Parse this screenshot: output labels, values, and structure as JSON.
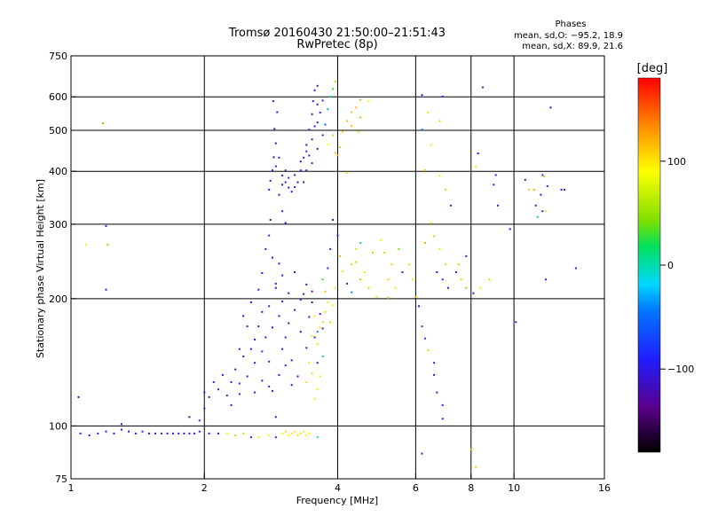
{
  "chart_data": {
    "type": "scatter",
    "title": "Tromsø 20160430 21:50:00–21:51:43",
    "subtitle": "RwPretec (8p)",
    "stats": {
      "heading": "Phases",
      "line_o": "mean, sd,O: −95.2, 18.9",
      "line_x": "mean, sd,X: 89.9, 21.6"
    },
    "xlabel": "Frequency [MHz]",
    "ylabel": "Stationary phase Virtual Height [km]",
    "x_scale": "log",
    "y_scale": "log",
    "xlim": [
      1,
      16
    ],
    "ylim": [
      75,
      750
    ],
    "x_ticks": [
      1,
      2,
      4,
      6,
      8,
      10,
      16
    ],
    "x_tick_labels": [
      "1",
      "2",
      "4",
      "6",
      "8",
      "10",
      "16"
    ],
    "y_ticks": [
      75,
      100,
      200,
      300,
      400,
      500,
      600,
      750
    ],
    "y_tick_labels": [
      "75",
      "100",
      "200",
      "300",
      "400",
      "500",
      "600",
      "750"
    ],
    "x_grid": [
      2,
      4,
      6,
      8,
      10
    ],
    "y_grid": [
      100,
      200,
      300,
      400,
      500,
      600
    ],
    "colorbar": {
      "label": "[deg]",
      "min": -180,
      "max": 180,
      "ticks": [
        100,
        0,
        -100
      ],
      "tick_labels": [
        "100",
        "0",
        "−100"
      ]
    },
    "points": [
      [
        1.05,
        96,
        -95
      ],
      [
        1.1,
        95,
        -100
      ],
      [
        1.15,
        96,
        -90
      ],
      [
        1.2,
        97,
        -105
      ],
      [
        1.25,
        96,
        -95
      ],
      [
        1.3,
        98,
        -110
      ],
      [
        1.35,
        97,
        -100
      ],
      [
        1.4,
        96,
        -92
      ],
      [
        1.45,
        97,
        -98
      ],
      [
        1.5,
        96,
        -103
      ],
      [
        1.55,
        96,
        -96
      ],
      [
        1.6,
        96,
        -100
      ],
      [
        1.65,
        96,
        -94
      ],
      [
        1.7,
        96,
        -97
      ],
      [
        1.75,
        96,
        -100
      ],
      [
        1.8,
        96,
        -98
      ],
      [
        1.85,
        96,
        -95
      ],
      [
        1.9,
        96,
        -102
      ],
      [
        1.95,
        97,
        -98
      ],
      [
        1.3,
        101,
        -105
      ],
      [
        1.04,
        117,
        -100
      ],
      [
        1.08,
        268,
        80
      ],
      [
        1.18,
        520,
        130
      ],
      [
        1.2,
        210,
        -100
      ],
      [
        1.2,
        297,
        -90
      ],
      [
        1.21,
        268,
        120
      ],
      [
        2.05,
        96,
        -90
      ],
      [
        2.15,
        96,
        -95
      ],
      [
        2.25,
        96,
        90
      ],
      [
        2.35,
        95,
        60
      ],
      [
        2.45,
        96,
        70
      ],
      [
        2.55,
        94,
        -80
      ],
      [
        2.65,
        94,
        85
      ],
      [
        2.8,
        95,
        95
      ],
      [
        2.9,
        94,
        -90
      ],
      [
        3.0,
        96,
        95
      ],
      [
        3.05,
        97,
        100
      ],
      [
        3.1,
        95,
        92
      ],
      [
        3.15,
        96,
        98
      ],
      [
        3.2,
        97,
        96
      ],
      [
        3.25,
        95,
        102
      ],
      [
        3.3,
        96,
        94
      ],
      [
        3.35,
        97,
        99
      ],
      [
        3.4,
        95,
        97
      ],
      [
        3.45,
        96,
        95
      ],
      [
        3.6,
        94,
        -20
      ],
      [
        1.85,
        105,
        -105
      ],
      [
        1.95,
        103,
        -80
      ],
      [
        2.0,
        110,
        -100
      ],
      [
        2.0,
        120,
        -95
      ],
      [
        2.05,
        117,
        -110
      ],
      [
        2.1,
        127,
        -100
      ],
      [
        2.15,
        122,
        -90
      ],
      [
        2.2,
        132,
        -105
      ],
      [
        2.25,
        118,
        -95
      ],
      [
        2.3,
        127,
        -100
      ],
      [
        2.35,
        136,
        -110
      ],
      [
        2.4,
        126,
        -100
      ],
      [
        2.45,
        146,
        -95
      ],
      [
        2.5,
        131,
        -105
      ],
      [
        2.55,
        152,
        -90
      ],
      [
        2.6,
        141,
        -100
      ],
      [
        2.6,
        160,
        -110
      ],
      [
        2.65,
        172,
        -95
      ],
      [
        2.7,
        150,
        -85
      ],
      [
        2.7,
        186,
        -100
      ],
      [
        2.75,
        162,
        -105
      ],
      [
        2.8,
        142,
        -95
      ],
      [
        2.8,
        192,
        -110
      ],
      [
        2.85,
        121,
        -100
      ],
      [
        2.85,
        171,
        -90
      ],
      [
        2.9,
        105,
        -100
      ],
      [
        2.9,
        212,
        -95
      ],
      [
        2.95,
        182,
        -100
      ],
      [
        3.0,
        152,
        -110
      ],
      [
        3.0,
        197,
        -100
      ],
      [
        3.05,
        162,
        -95
      ],
      [
        3.1,
        175,
        -120
      ],
      [
        3.15,
        143,
        -100
      ],
      [
        3.2,
        188,
        -115
      ],
      [
        3.25,
        131,
        -105
      ],
      [
        3.3,
        167,
        -110
      ],
      [
        3.35,
        205,
        -120
      ],
      [
        3.4,
        153,
        -100
      ],
      [
        3.45,
        181,
        -125
      ],
      [
        3.5,
        196,
        -110
      ],
      [
        3.55,
        162,
        -100
      ],
      [
        3.6,
        141,
        -105
      ],
      [
        3.65,
        184,
        -115
      ],
      [
        3.7,
        170,
        -95
      ],
      [
        2.4,
        152,
        -100
      ],
      [
        2.5,
        172,
        -105
      ],
      [
        2.45,
        182,
        -95
      ],
      [
        2.55,
        196,
        -100
      ],
      [
        2.65,
        210,
        -90
      ],
      [
        2.7,
        230,
        -95
      ],
      [
        2.75,
        262,
        -100
      ],
      [
        2.8,
        282,
        -105
      ],
      [
        2.82,
        307,
        -110
      ],
      [
        2.85,
        250,
        -95
      ],
      [
        2.9,
        217,
        -100
      ],
      [
        2.95,
        242,
        -105
      ],
      [
        3.0,
        227,
        -100
      ],
      [
        3.1,
        206,
        -110
      ],
      [
        3.2,
        231,
        -120
      ],
      [
        3.3,
        199,
        -115
      ],
      [
        3.4,
        216,
        -125
      ],
      [
        3.5,
        208,
        -110
      ],
      [
        2.6,
        120,
        -100
      ],
      [
        2.7,
        128,
        -95
      ],
      [
        2.8,
        124,
        -105
      ],
      [
        2.95,
        132,
        -100
      ],
      [
        3.05,
        139,
        -95
      ],
      [
        3.15,
        125,
        -100
      ],
      [
        2.3,
        112,
        -105
      ],
      [
        2.4,
        119,
        -95
      ],
      [
        3.4,
        127,
        105
      ],
      [
        3.5,
        133,
        110
      ],
      [
        3.6,
        122,
        95
      ],
      [
        3.55,
        116,
        100
      ],
      [
        3.65,
        131,
        100
      ],
      [
        3.45,
        141,
        102
      ],
      [
        3.5,
        163,
        98
      ],
      [
        3.6,
        156,
        105
      ],
      [
        3.7,
        176,
        108
      ],
      [
        3.75,
        186,
        112
      ],
      [
        3.65,
        171,
        100
      ],
      [
        3.55,
        182,
        95
      ],
      [
        3.7,
        146,
        10
      ],
      [
        3.6,
        167,
        -40
      ],
      [
        3.8,
        196,
        80
      ],
      [
        3.85,
        176,
        110
      ],
      [
        3.75,
        208,
        115
      ],
      [
        3.7,
        222,
        30
      ],
      [
        3.9,
        193,
        90
      ],
      [
        3.95,
        212,
        100
      ],
      [
        3.8,
        236,
        -90
      ],
      [
        3.85,
        262,
        -100
      ],
      [
        4.0,
        282,
        -110
      ],
      [
        3.9,
        307,
        -95
      ],
      [
        4.05,
        252,
        120
      ],
      [
        4.1,
        232,
        100
      ],
      [
        4.2,
        217,
        -100
      ],
      [
        4.3,
        241,
        110
      ],
      [
        4.4,
        262,
        105
      ],
      [
        4.5,
        271,
        -20
      ],
      [
        4.5,
        222,
        115
      ],
      [
        4.6,
        231,
        100
      ],
      [
        4.7,
        212,
        110
      ],
      [
        4.8,
        257,
        115
      ],
      [
        4.9,
        202,
        100
      ],
      [
        5.0,
        275,
        95
      ],
      [
        5.1,
        257,
        110
      ],
      [
        5.2,
        222,
        105
      ],
      [
        5.3,
        241,
        110
      ],
      [
        5.4,
        212,
        100
      ],
      [
        5.5,
        262,
        40
      ],
      [
        5.6,
        231,
        -80
      ],
      [
        5.2,
        201,
        120
      ],
      [
        5.8,
        241,
        110
      ],
      [
        5.9,
        222,
        100
      ],
      [
        6.0,
        202,
        120
      ],
      [
        4.3,
        207,
        -40
      ],
      [
        4.4,
        244,
        60
      ],
      [
        2.8,
        362,
        -100
      ],
      [
        2.82,
        380,
        -105
      ],
      [
        2.85,
        402,
        -110
      ],
      [
        2.87,
        432,
        -100
      ],
      [
        2.9,
        466,
        -105
      ],
      [
        2.88,
        504,
        -110
      ],
      [
        2.92,
        552,
        -100
      ],
      [
        2.86,
        586,
        -95
      ],
      [
        2.95,
        352,
        -110
      ],
      [
        3.0,
        372,
        -115
      ],
      [
        3.05,
        377,
        -120
      ],
      [
        3.1,
        366,
        -110
      ],
      [
        3.15,
        358,
        -100
      ],
      [
        3.2,
        367,
        -105
      ],
      [
        3.25,
        377,
        -110
      ],
      [
        3.3,
        402,
        -100
      ],
      [
        3.35,
        431,
        -105
      ],
      [
        3.4,
        462,
        -110
      ],
      [
        3.45,
        502,
        -100
      ],
      [
        3.5,
        546,
        -105
      ],
      [
        3.52,
        586,
        -95
      ],
      [
        3.55,
        622,
        -100
      ],
      [
        3.6,
        637,
        -105
      ],
      [
        3.6,
        576,
        -110
      ],
      [
        3.55,
        511,
        -100
      ],
      [
        3.45,
        436,
        -105
      ],
      [
        3.4,
        402,
        -110
      ],
      [
        3.35,
        377,
        -100
      ],
      [
        3.5,
        418,
        -95
      ],
      [
        3.6,
        452,
        -100
      ],
      [
        3.7,
        487,
        -105
      ],
      [
        3.75,
        516,
        -60
      ],
      [
        3.8,
        561,
        -30
      ],
      [
        3.85,
        601,
        10
      ],
      [
        3.9,
        626,
        30
      ],
      [
        3.95,
        652,
        60
      ],
      [
        3.8,
        462,
        90
      ],
      [
        3.9,
        487,
        110
      ],
      [
        3.95,
        442,
        115
      ],
      [
        4.0,
        436,
        120
      ],
      [
        4.05,
        456,
        115
      ],
      [
        4.1,
        496,
        110
      ],
      [
        4.2,
        526,
        112
      ],
      [
        4.3,
        552,
        115
      ],
      [
        4.4,
        566,
        118
      ],
      [
        4.5,
        591,
        120
      ],
      [
        4.3,
        512,
        110
      ],
      [
        4.45,
        496,
        100
      ],
      [
        4.5,
        536,
        120
      ],
      [
        4.7,
        586,
        90
      ],
      [
        4.2,
        397,
        100
      ],
      [
        3.0,
        391,
        -100
      ],
      [
        2.9,
        411,
        -110
      ],
      [
        2.95,
        431,
        -105
      ],
      [
        3.05,
        402,
        -100
      ],
      [
        3.1,
        386,
        -90
      ],
      [
        3.2,
        392,
        -95
      ],
      [
        3.3,
        422,
        -100
      ],
      [
        3.4,
        446,
        -95
      ],
      [
        3.5,
        476,
        -100
      ],
      [
        3.6,
        522,
        -90
      ],
      [
        3.65,
        551,
        -95
      ],
      [
        3.7,
        588,
        -100
      ],
      [
        3.0,
        322,
        -100
      ],
      [
        3.05,
        302,
        -110
      ],
      [
        6.2,
        606,
        -90
      ],
      [
        6.9,
        601,
        -80
      ],
      [
        6.4,
        551,
        100
      ],
      [
        6.8,
        526,
        110
      ],
      [
        6.2,
        502,
        -60
      ],
      [
        6.5,
        462,
        100
      ],
      [
        6.3,
        402,
        120
      ],
      [
        6.8,
        391,
        100
      ],
      [
        7.0,
        362,
        110
      ],
      [
        7.2,
        332,
        -90
      ],
      [
        6.5,
        302,
        80
      ],
      [
        6.6,
        281,
        110
      ],
      [
        6.3,
        271,
        120
      ],
      [
        6.8,
        262,
        100
      ],
      [
        7.0,
        241,
        110
      ],
      [
        6.7,
        231,
        -100
      ],
      [
        6.9,
        222,
        -95
      ],
      [
        7.1,
        212,
        -100
      ],
      [
        7.4,
        231,
        -80
      ],
      [
        7.6,
        222,
        110
      ],
      [
        7.8,
        212,
        120
      ],
      [
        7.5,
        241,
        115
      ],
      [
        7.8,
        252,
        -110
      ],
      [
        8.1,
        206,
        -90
      ],
      [
        8.4,
        212,
        100
      ],
      [
        8.8,
        222,
        110
      ],
      [
        6.1,
        192,
        -90
      ],
      [
        6.2,
        172,
        -80
      ],
      [
        6.3,
        161,
        -70
      ],
      [
        6.4,
        151,
        110
      ],
      [
        6.6,
        141,
        -90
      ],
      [
        6.6,
        132,
        -100
      ],
      [
        6.7,
        120,
        -95
      ],
      [
        6.9,
        112,
        -90
      ],
      [
        6.9,
        104,
        -100
      ],
      [
        6.2,
        86,
        -110
      ],
      [
        8.0,
        88,
        120
      ],
      [
        8.2,
        80,
        110
      ],
      [
        8.3,
        441,
        -100
      ],
      [
        8.2,
        411,
        100
      ],
      [
        8.5,
        632,
        -100
      ],
      [
        9.0,
        372,
        -90
      ],
      [
        9.1,
        392,
        -95
      ],
      [
        9.2,
        332,
        -100
      ],
      [
        9.8,
        292,
        -95
      ],
      [
        10.1,
        176,
        -90
      ],
      [
        10.6,
        382,
        -100
      ],
      [
        10.8,
        362,
        110
      ],
      [
        11.1,
        362,
        120
      ],
      [
        11.6,
        392,
        -80
      ],
      [
        11.5,
        352,
        -110
      ],
      [
        11.2,
        332,
        -95
      ],
      [
        11.6,
        322,
        -90
      ],
      [
        11.3,
        312,
        10
      ],
      [
        11.8,
        322,
        80
      ],
      [
        11.9,
        369,
        -100
      ],
      [
        11.7,
        389,
        115
      ],
      [
        12.8,
        362,
        -100
      ],
      [
        13.0,
        362,
        -95
      ],
      [
        13.8,
        236,
        -100
      ],
      [
        12.1,
        566,
        -110
      ],
      [
        11.8,
        222,
        -90
      ]
    ]
  }
}
